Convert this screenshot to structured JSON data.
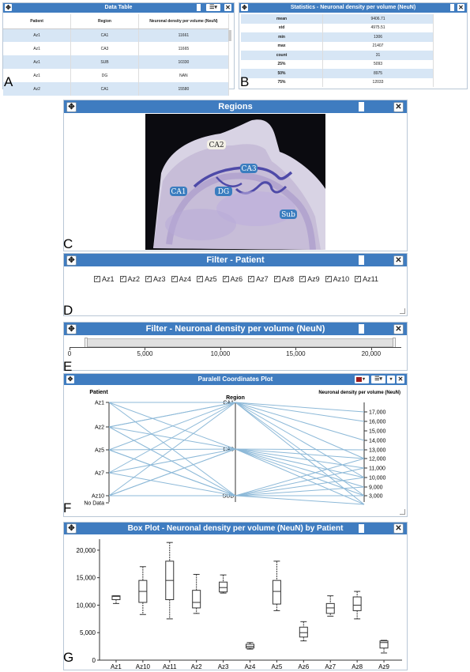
{
  "data_table": {
    "title": "Data Table",
    "panel_label": "A",
    "columns": [
      "Patient",
      "Region",
      "Neuronal density per volume (NeuN)"
    ],
    "rows": [
      [
        "Az1",
        "CA1",
        "11661"
      ],
      [
        "Az1",
        "CA3",
        "11665"
      ],
      [
        "Az1",
        "SUB",
        "10330"
      ],
      [
        "Az1",
        "DG",
        "NAN"
      ],
      [
        "Az2",
        "CA1",
        "15580"
      ]
    ]
  },
  "statistics": {
    "title": "Statistics - Neuronal density per volume (NeuN)",
    "panel_label": "B",
    "rows": [
      [
        "mean",
        "9406.71"
      ],
      [
        "std",
        "4975.51"
      ],
      [
        "min",
        "1306"
      ],
      [
        "max",
        "21407"
      ],
      [
        "count",
        "31"
      ],
      [
        "25%",
        "5093"
      ],
      [
        "50%",
        "8975"
      ],
      [
        "75%",
        "12033"
      ]
    ]
  },
  "regions": {
    "title": "Regions",
    "panel_label": "C",
    "labels": [
      "CA2",
      "CA3",
      "CA1",
      "DG",
      "Sub"
    ]
  },
  "filter_patient": {
    "title": "Filter - Patient",
    "panel_label": "D",
    "options": [
      "Az1",
      "Az2",
      "Az3",
      "Az4",
      "Az5",
      "Az6",
      "Az7",
      "Az8",
      "Az9",
      "Az10",
      "Az11"
    ],
    "checked": true
  },
  "filter_density": {
    "title": "Filter - Neuronal density per volume (NeuN)",
    "panel_label": "E",
    "ticks": [
      "0",
      "5,000",
      "10,000",
      "15,000",
      "20,000"
    ],
    "range": [
      0,
      21407
    ]
  },
  "parallel": {
    "title": "Paralell Coordinates Plot",
    "panel_label": "F",
    "axis_labels": [
      "Patient",
      "Region",
      "Neuronal density per volume (NeuN)"
    ],
    "patient_ticks": [
      "Az1",
      "Az2",
      "Az5",
      "Az7",
      "Az10",
      "No Data"
    ],
    "region_ticks": [
      "CA1",
      "CA3",
      "SUB"
    ],
    "density_ticks": [
      "17,000",
      "16,000",
      "15,000",
      "14,000",
      "13,000",
      "12,000",
      "11,000",
      "10,000",
      "9,000",
      "3,000"
    ],
    "color": "#8db9d8"
  },
  "box": {
    "title": "Box Plot - Neuronal density per volume (NeuN) by Patient",
    "panel_label": "G"
  },
  "chart_data": {
    "type": "box",
    "title": "Box Plot - Neuronal density per volume (NeuN) by Patient",
    "categories": [
      "Az1",
      "Az10",
      "Az11",
      "Az2",
      "Az3",
      "Az4",
      "Az5",
      "Az6",
      "Az7",
      "Az8",
      "Az9"
    ],
    "boxes": [
      {
        "min": 10300,
        "q1": 11000,
        "median": 11600,
        "q3": 11700,
        "max": 11700
      },
      {
        "min": 8300,
        "q1": 10500,
        "median": 12500,
        "q3": 14500,
        "max": 17000
      },
      {
        "min": 7500,
        "q1": 11000,
        "median": 14500,
        "q3": 18000,
        "max": 21400
      },
      {
        "min": 8500,
        "q1": 9500,
        "median": 10500,
        "q3": 12700,
        "max": 15600
      },
      {
        "min": 12200,
        "q1": 12400,
        "median": 13200,
        "q3": 14200,
        "max": 15500
      },
      {
        "min": 2000,
        "q1": 2200,
        "median": 2500,
        "q3": 2900,
        "max": 3200
      },
      {
        "min": 9000,
        "q1": 10200,
        "median": 12500,
        "q3": 14500,
        "max": 18000
      },
      {
        "min": 3500,
        "q1": 4200,
        "median": 5000,
        "q3": 6000,
        "max": 7000
      },
      {
        "min": 8000,
        "q1": 8500,
        "median": 9500,
        "q3": 10300,
        "max": 11700
      },
      {
        "min": 7500,
        "q1": 9000,
        "median": 10000,
        "q3": 11500,
        "max": 12500
      },
      {
        "min": 1300,
        "q1": 2200,
        "median": 3200,
        "q3": 3500,
        "max": 3600
      }
    ],
    "yticks": [
      "0",
      "5,000",
      "10,000",
      "15,000",
      "20,000"
    ],
    "ylim": [
      0,
      22000
    ]
  }
}
